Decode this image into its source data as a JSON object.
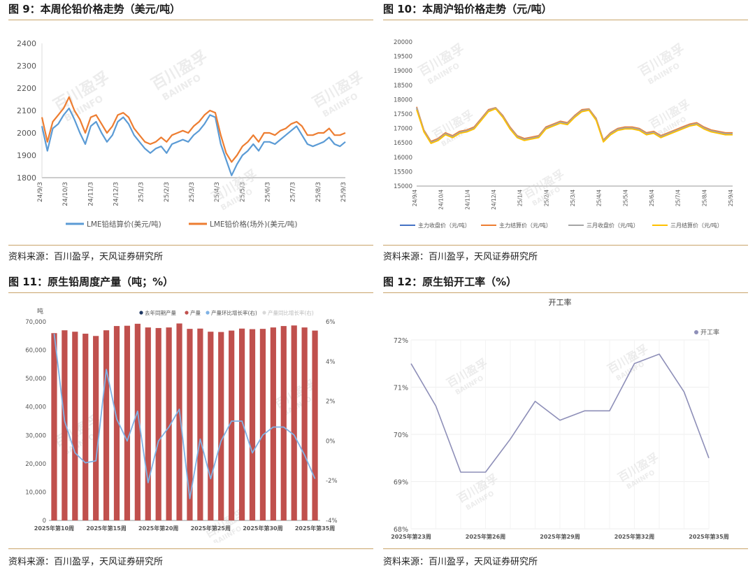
{
  "page": {
    "accent": "#c9a46a"
  },
  "panels": [
    {
      "title": "图 9：本周伦铅价格走势（美元/吨）",
      "source": "资料来源：百川盈孚，天风证券研究所"
    },
    {
      "title": "图 10：本周沪铅价格走势（元/吨）",
      "source": "资料来源：百川盈孚，天风证券研究所"
    },
    {
      "title": "图 11：原生铅周度产量（吨；%）",
      "source": "资料来源：百川盈孚，天风证券研究所"
    },
    {
      "title": "图 12：原生铅开工率（%）",
      "source": "资料来源：百川盈孚，天风证券研究所"
    }
  ],
  "watermark": {
    "cn": "百川盈孚",
    "en": "BAIINFO"
  },
  "chart_data": [
    {
      "type": "line",
      "x_ticks": [
        "24/9/3",
        "24/10/3",
        "24/11/3",
        "24/12/3",
        "25/1/3",
        "25/2/3",
        "25/3/3",
        "25/4/3",
        "25/5/3",
        "25/6/3",
        "25/7/3",
        "25/8/3",
        "25/9/3"
      ],
      "y_ticks": [
        "1800",
        "1900",
        "2000",
        "2100",
        "2200",
        "2300",
        "2400"
      ],
      "ylim": [
        1800,
        2400
      ],
      "series": [
        {
          "name": "LME铅结算价(美元/吨)",
          "color": "#5b9bd5",
          "values": [
            2030,
            1920,
            2020,
            2040,
            2080,
            2110,
            2060,
            2000,
            1950,
            2030,
            2050,
            2000,
            1960,
            1990,
            2050,
            2070,
            2040,
            1990,
            1960,
            1930,
            1910,
            1930,
            1940,
            1910,
            1950,
            1960,
            1970,
            1960,
            1990,
            2010,
            2040,
            2080,
            2070,
            1950,
            1880,
            1810,
            1860,
            1900,
            1920,
            1950,
            1920,
            1960,
            1960,
            1950,
            1970,
            1990,
            2010,
            2030,
            1990,
            1950,
            1940,
            1950,
            1960,
            1980,
            1950,
            1940,
            1960
          ]
        },
        {
          "name": "LME铅价格(场外)(美元/吨)",
          "color": "#ed7d31",
          "values": [
            2070,
            1960,
            2050,
            2080,
            2110,
            2160,
            2100,
            2060,
            2000,
            2070,
            2080,
            2040,
            2000,
            2030,
            2080,
            2090,
            2070,
            2020,
            1990,
            1960,
            1950,
            1960,
            1980,
            1960,
            1990,
            2000,
            2010,
            2000,
            2030,
            2050,
            2080,
            2100,
            2090,
            1990,
            1910,
            1870,
            1900,
            1940,
            1960,
            1990,
            1960,
            2000,
            2000,
            1990,
            2010,
            2020,
            2040,
            2050,
            2030,
            1990,
            1990,
            2000,
            2000,
            2020,
            1990,
            1990,
            2000
          ]
        }
      ],
      "title": "",
      "xlabel": "",
      "ylabel": ""
    },
    {
      "type": "line",
      "x_ticks": [
        "24/9/4",
        "24/10/4",
        "24/11/4",
        "24/12/4",
        "25/1/4",
        "25/2/4",
        "25/3/4",
        "25/4/4",
        "25/5/4",
        "25/6/4",
        "25/7/4",
        "25/8/4",
        "25/9/4"
      ],
      "y_ticks": [
        "15000",
        "15500",
        "16000",
        "16500",
        "17000",
        "17500",
        "18000",
        "18500",
        "19000",
        "19500",
        "20000"
      ],
      "ylim": [
        15000,
        20000
      ],
      "series": [
        {
          "name": "主力收盘价（元/吨）",
          "color": "#4472c4",
          "values": [
            17700,
            16900,
            16500,
            16600,
            16800,
            16700,
            16850,
            16900,
            17000,
            17300,
            17600,
            17700,
            17400,
            17000,
            16700,
            16600,
            16650,
            16700,
            17000,
            17100,
            17200,
            17150,
            17400,
            17600,
            17650,
            17300,
            16550,
            16800,
            16950,
            17000,
            17000,
            16950,
            16800,
            16850,
            16700,
            16800,
            16900,
            17000,
            17100,
            17150,
            17000,
            16900,
            16850,
            16800,
            16800
          ]
        },
        {
          "name": "主力结算价（元/吨）",
          "color": "#ed7d31",
          "values": [
            17750,
            16950,
            16550,
            16650,
            16850,
            16750,
            16900,
            16950,
            17050,
            17350,
            17650,
            17720,
            17450,
            17050,
            16750,
            16650,
            16700,
            16750,
            17050,
            17150,
            17250,
            17200,
            17450,
            17650,
            17680,
            17350,
            16600,
            16850,
            17000,
            17050,
            17050,
            17000,
            16850,
            16900,
            16750,
            16850,
            16950,
            17050,
            17150,
            17200,
            17050,
            16950,
            16900,
            16850,
            16850
          ]
        },
        {
          "name": "三月收盘价（元/吨）",
          "color": "#a5a5a5",
          "values": [
            17720,
            16920,
            16520,
            16620,
            16820,
            16720,
            16870,
            16920,
            17020,
            17320,
            17620,
            17710,
            17420,
            17020,
            16720,
            16620,
            16670,
            16720,
            17020,
            17120,
            17220,
            17170,
            17420,
            17620,
            17660,
            17320,
            16570,
            16820,
            16970,
            17020,
            17020,
            16970,
            16820,
            16870,
            16720,
            16820,
            16920,
            17020,
            17120,
            17170,
            17020,
            16920,
            16870,
            16820,
            16820
          ]
        },
        {
          "name": "三月结算价（元/吨）",
          "color": "#ffc000",
          "values": [
            17650,
            16880,
            16480,
            16580,
            16780,
            16680,
            16830,
            16880,
            16980,
            17280,
            17580,
            17680,
            17380,
            16980,
            16680,
            16580,
            16630,
            16680,
            16980,
            17080,
            17180,
            17130,
            17380,
            17580,
            17630,
            17280,
            16530,
            16780,
            16930,
            16980,
            16980,
            16930,
            16780,
            16830,
            16680,
            16780,
            16880,
            16980,
            17080,
            17130,
            16980,
            16880,
            16830,
            16780,
            16780
          ]
        }
      ],
      "title": "",
      "xlabel": "",
      "ylabel": ""
    },
    {
      "type": "bar",
      "unit_label": "吨",
      "categories": [
        "2025年第10周",
        "2025年第11周",
        "2025年第12周",
        "2025年第13周",
        "2025年第14周",
        "2025年第15周",
        "2025年第16周",
        "2025年第17周",
        "2025年第18周",
        "2025年第19周",
        "2025年第20周",
        "2025年第21周",
        "2025年第22周",
        "2025年第23周",
        "2025年第24周",
        "2025年第25周",
        "2025年第26周",
        "2025年第27周",
        "2025年第28周",
        "2025年第29周",
        "2025年第30周",
        "2025年第31周",
        "2025年第32周",
        "2025年第33周",
        "2025年第34周",
        "2025年第35周"
      ],
      "x_tick_labels": [
        "2025年第10周",
        "2025年第15周",
        "2025年第20周",
        "2025年第25周",
        "2025年第30周",
        "2025年第35周"
      ],
      "x_tick_indices": [
        0,
        5,
        10,
        15,
        20,
        25
      ],
      "y_ticks": [
        "0",
        "10,000",
        "20,000",
        "30,000",
        "40,000",
        "50,000",
        "60,000",
        "70,000"
      ],
      "y2_ticks": [
        "-4%",
        "-2%",
        "0%",
        "2%",
        "4%",
        "6%"
      ],
      "ylim": [
        0,
        70000
      ],
      "y2lim": [
        -4,
        6
      ],
      "legend": [
        "去年同期产量",
        "产量",
        "产量环比增长率(右)",
        "产量同比增长率(右)"
      ],
      "legend_colors": [
        "#1f3864",
        "#c0504d",
        "#7fb2e5",
        "#d9d9d9"
      ],
      "series": [
        {
          "name": "产量",
          "color": "#c0504d",
          "values": [
            66000,
            67000,
            66500,
            65800,
            65000,
            67000,
            68500,
            68600,
            69300,
            68000,
            67800,
            68000,
            69400,
            67500,
            67600,
            66500,
            66400,
            66900,
            67600,
            67400,
            67500,
            68000,
            68500,
            68700,
            68000,
            66900
          ]
        },
        {
          "name": "产量环比增长率(右)",
          "color": "#7fb2e5",
          "values": [
            5.4,
            1.0,
            -0.6,
            -1.1,
            -1.0,
            3.6,
            1.1,
            0.0,
            1.5,
            -2.1,
            0.0,
            0.7,
            1.6,
            -2.9,
            0.1,
            -1.9,
            0.0,
            1.0,
            1.0,
            -0.6,
            0.3,
            0.7,
            0.7,
            0.3,
            -0.7,
            -1.9
          ]
        }
      ],
      "title": "",
      "xlabel": "",
      "ylabel": ""
    },
    {
      "type": "line",
      "title": "开工率",
      "legend": [
        "开工率"
      ],
      "categories": [
        "2025年第23周",
        "2025年第24周",
        "2025年第25周",
        "2025年第26周",
        "2025年第27周",
        "2025年第28周",
        "2025年第29周",
        "2025年第30周",
        "2025年第31周",
        "2025年第32周",
        "2025年第33周",
        "2025年第34周",
        "2025年第35周"
      ],
      "x_tick_labels": [
        "2025年第23周",
        "2025年第26周",
        "2025年第29周",
        "2025年第32周",
        "2025年第35周"
      ],
      "x_tick_indices": [
        0,
        3,
        6,
        9,
        12
      ],
      "y_ticks": [
        "68%",
        "69%",
        "70%",
        "71%",
        "72%"
      ],
      "ylim": [
        68,
        72
      ],
      "series": [
        {
          "name": "开工率",
          "color": "#8e8fb8",
          "values": [
            71.5,
            70.6,
            69.2,
            69.2,
            69.9,
            70.7,
            70.3,
            70.5,
            70.5,
            71.5,
            71.7,
            70.9,
            69.5
          ]
        }
      ],
      "xlabel": "",
      "ylabel": ""
    }
  ]
}
